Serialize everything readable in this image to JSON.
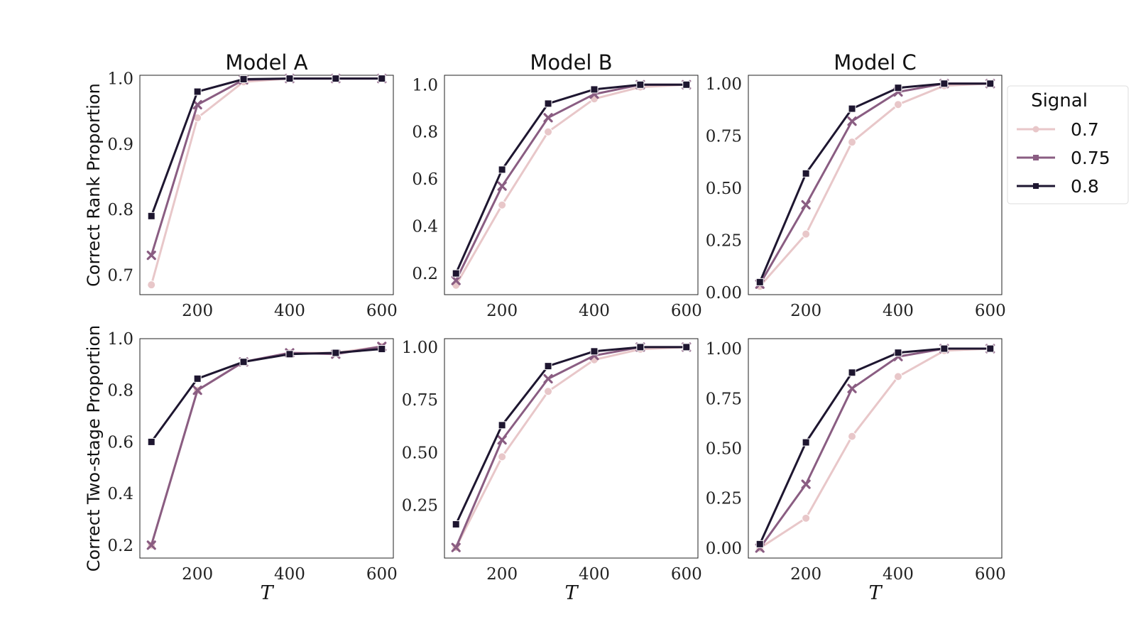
{
  "legend": {
    "title": "Signal",
    "entries": [
      {
        "label": "0.7",
        "color": "#e8c7c9",
        "marker": "circle"
      },
      {
        "label": "0.75",
        "color": "#8a5d82",
        "marker": "x"
      },
      {
        "label": "0.8",
        "color": "#1e1630",
        "marker": "square"
      }
    ]
  },
  "row_labels": [
    "Correct Rank Proportion",
    "Correct Two-stage Proportion"
  ],
  "column_titles": [
    "Model A",
    "Model B",
    "Model C"
  ],
  "x_axis_label": "T",
  "chart_data": [
    {
      "type": "line",
      "title": "Model A",
      "xlabel": "",
      "ylabel": "Correct Rank Proportion",
      "x": [
        100,
        200,
        300,
        400,
        500,
        600
      ],
      "xlim": [
        75,
        625
      ],
      "ylim": [
        0.67,
        1.005
      ],
      "xticks": [
        "200",
        "400",
        "600"
      ],
      "yticks": [
        "0.7",
        "0.8",
        "0.9",
        "1.0"
      ],
      "series": [
        {
          "name": "0.7",
          "values": [
            0.685,
            0.94,
            0.995,
            1.0,
            1.0,
            1.0
          ]
        },
        {
          "name": "0.75",
          "values": [
            0.73,
            0.96,
            0.998,
            1.0,
            1.0,
            1.0
          ]
        },
        {
          "name": "0.8",
          "values": [
            0.79,
            0.98,
            0.999,
            1.0,
            1.0,
            1.0
          ]
        }
      ]
    },
    {
      "type": "line",
      "title": "Model B",
      "xlabel": "",
      "ylabel": "",
      "x": [
        100,
        200,
        300,
        400,
        500,
        600
      ],
      "xlim": [
        75,
        625
      ],
      "ylim": [
        0.11,
        1.04
      ],
      "xticks": [
        "200",
        "400",
        "600"
      ],
      "yticks": [
        "0.2",
        "0.4",
        "0.6",
        "0.8",
        "1.0"
      ],
      "series": [
        {
          "name": "0.7",
          "values": [
            0.15,
            0.49,
            0.8,
            0.94,
            0.99,
            1.0
          ]
        },
        {
          "name": "0.75",
          "values": [
            0.17,
            0.57,
            0.86,
            0.96,
            1.0,
            1.0
          ]
        },
        {
          "name": "0.8",
          "values": [
            0.2,
            0.64,
            0.92,
            0.98,
            1.0,
            1.0
          ]
        }
      ]
    },
    {
      "type": "line",
      "title": "Model C",
      "xlabel": "",
      "ylabel": "",
      "x": [
        100,
        200,
        300,
        400,
        500,
        600
      ],
      "xlim": [
        75,
        625
      ],
      "ylim": [
        -0.01,
        1.04
      ],
      "xticks": [
        "200",
        "400",
        "600"
      ],
      "yticks": [
        "0.00",
        "0.25",
        "0.50",
        "0.75",
        "1.00"
      ],
      "series": [
        {
          "name": "0.7",
          "values": [
            0.03,
            0.28,
            0.72,
            0.9,
            0.99,
            1.0
          ]
        },
        {
          "name": "0.75",
          "values": [
            0.04,
            0.42,
            0.82,
            0.96,
            1.0,
            1.0
          ]
        },
        {
          "name": "0.8",
          "values": [
            0.05,
            0.57,
            0.88,
            0.98,
            1.0,
            1.0
          ]
        }
      ]
    },
    {
      "type": "line",
      "title": "",
      "xlabel": "T",
      "ylabel": "Correct Two-stage Proportion",
      "x": [
        100,
        200,
        300,
        400,
        500,
        600
      ],
      "xlim": [
        75,
        625
      ],
      "ylim": [
        0.15,
        1.0
      ],
      "xticks": [
        "200",
        "400",
        "600"
      ],
      "yticks": [
        "0.2",
        "0.4",
        "0.6",
        "0.8",
        "1.0"
      ],
      "series": [
        {
          "name": "0.7",
          "values": [
            0.2,
            0.8,
            0.91,
            0.945,
            0.945,
            0.97
          ]
        },
        {
          "name": "0.75",
          "values": [
            0.2,
            0.8,
            0.91,
            0.945,
            0.94,
            0.97
          ]
        },
        {
          "name": "0.8",
          "values": [
            0.6,
            0.845,
            0.91,
            0.94,
            0.945,
            0.96
          ]
        }
      ]
    },
    {
      "type": "line",
      "title": "",
      "xlabel": "T",
      "ylabel": "",
      "x": [
        100,
        200,
        300,
        400,
        500,
        600
      ],
      "xlim": [
        75,
        625
      ],
      "ylim": [
        0.0,
        1.04
      ],
      "xticks": [
        "200",
        "400",
        "600"
      ],
      "yticks": [
        "0.25",
        "0.50",
        "0.75",
        "1.00"
      ],
      "series": [
        {
          "name": "0.7",
          "values": [
            0.05,
            0.48,
            0.79,
            0.94,
            0.99,
            1.0
          ]
        },
        {
          "name": "0.75",
          "values": [
            0.05,
            0.56,
            0.85,
            0.96,
            1.0,
            1.0
          ]
        },
        {
          "name": "0.8",
          "values": [
            0.16,
            0.63,
            0.91,
            0.98,
            1.0,
            1.0
          ]
        }
      ]
    },
    {
      "type": "line",
      "title": "",
      "xlabel": "T",
      "ylabel": "",
      "x": [
        100,
        200,
        300,
        400,
        500,
        600
      ],
      "xlim": [
        75,
        625
      ],
      "ylim": [
        -0.05,
        1.05
      ],
      "xticks": [
        "200",
        "400",
        "600"
      ],
      "yticks": [
        "0.00",
        "0.25",
        "0.50",
        "0.75",
        "1.00"
      ],
      "series": [
        {
          "name": "0.7",
          "values": [
            0.0,
            0.15,
            0.56,
            0.86,
            0.99,
            1.0
          ]
        },
        {
          "name": "0.75",
          "values": [
            0.0,
            0.32,
            0.8,
            0.96,
            1.0,
            1.0
          ]
        },
        {
          "name": "0.8",
          "values": [
            0.02,
            0.53,
            0.88,
            0.98,
            1.0,
            1.0
          ]
        }
      ]
    }
  ]
}
